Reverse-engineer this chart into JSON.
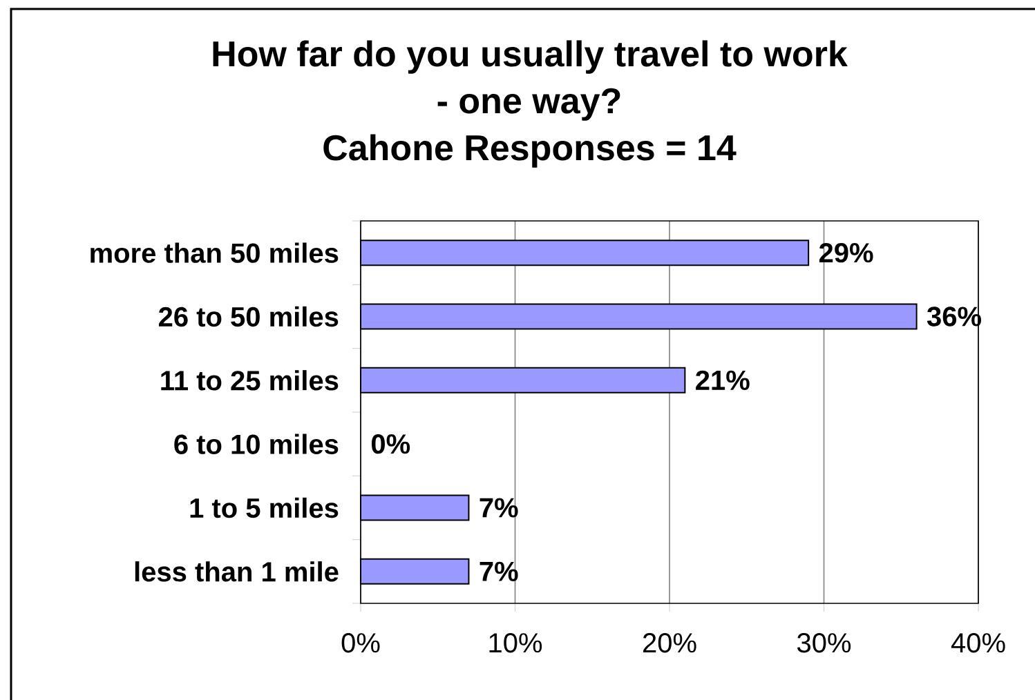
{
  "chart_data": {
    "type": "bar",
    "orientation": "horizontal",
    "title": "How far do you usually travel to work - one way?",
    "subtitle": "Cahone Responses = 14",
    "categories": [
      "more than 50 miles",
      "26 to 50 miles",
      "11 to 25 miles",
      "6 to 10 miles",
      "1 to 5 miles",
      "less than 1 mile"
    ],
    "values": [
      29,
      36,
      21,
      0,
      7,
      7
    ],
    "value_labels": [
      "29%",
      "36%",
      "21%",
      "0%",
      "7%",
      "7%"
    ],
    "color": "#9999ff",
    "xlim": [
      0,
      40
    ],
    "xticks": [
      {
        "value": 0,
        "label": "0%"
      },
      {
        "value": 10,
        "label": "10%"
      },
      {
        "value": 20,
        "label": "20%"
      },
      {
        "value": 30,
        "label": "30%"
      },
      {
        "value": 40,
        "label": "40%"
      }
    ],
    "grid": "x"
  }
}
